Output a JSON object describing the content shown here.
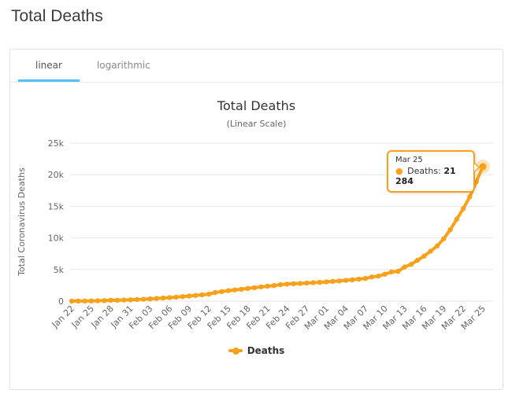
{
  "page": {
    "title": "Total Deaths"
  },
  "tabs": [
    {
      "label": "linear",
      "active": true
    },
    {
      "label": "logarithmic",
      "active": false
    }
  ],
  "chart": {
    "title": "Total Deaths",
    "subtitle": "(Linear Scale)",
    "legend_label": "Deaths",
    "tooltip": {
      "date": "Mar 25",
      "bullet": "●",
      "label": "Deaths:",
      "value": "21 284"
    },
    "colors": {
      "series": "#f9a11a",
      "halo": "rgba(249,161,26,0.3)",
      "grid": "#e6e6e6",
      "axis_text": "#666666",
      "tab_underline": "#4fc3f7"
    }
  },
  "chart_data": {
    "type": "line",
    "title": "Total Deaths",
    "subtitle": "(Linear Scale)",
    "series_name": "Deaths",
    "xlabel": "",
    "ylabel": "Total Coronavirus Deaths",
    "ylim": [
      0,
      25000
    ],
    "yticks": [
      0,
      5000,
      10000,
      15000,
      20000,
      25000
    ],
    "ytick_labels": [
      "0",
      "5k",
      "10k",
      "15k",
      "20k",
      "25k"
    ],
    "xtick_every": 3,
    "grid": "horizontal",
    "legend_position": "bottom",
    "color": "#f9a11a",
    "x": [
      "Jan 22",
      "Jan 23",
      "Jan 24",
      "Jan 25",
      "Jan 26",
      "Jan 27",
      "Jan 28",
      "Jan 29",
      "Jan 30",
      "Jan 31",
      "Feb 01",
      "Feb 02",
      "Feb 03",
      "Feb 04",
      "Feb 05",
      "Feb 06",
      "Feb 07",
      "Feb 08",
      "Feb 09",
      "Feb 10",
      "Feb 11",
      "Feb 12",
      "Feb 13",
      "Feb 14",
      "Feb 15",
      "Feb 16",
      "Feb 17",
      "Feb 18",
      "Feb 19",
      "Feb 20",
      "Feb 21",
      "Feb 22",
      "Feb 23",
      "Feb 24",
      "Feb 25",
      "Feb 26",
      "Feb 27",
      "Feb 28",
      "Feb 29",
      "Mar 01",
      "Mar 02",
      "Mar 03",
      "Mar 04",
      "Mar 05",
      "Mar 06",
      "Mar 07",
      "Mar 08",
      "Mar 09",
      "Mar 10",
      "Mar 11",
      "Mar 12",
      "Mar 13",
      "Mar 14",
      "Mar 15",
      "Mar 16",
      "Mar 17",
      "Mar 18",
      "Mar 19",
      "Mar 20",
      "Mar 21",
      "Mar 22",
      "Mar 23",
      "Mar 24",
      "Mar 25"
    ],
    "values": [
      17,
      18,
      26,
      42,
      56,
      82,
      131,
      133,
      171,
      213,
      259,
      304,
      362,
      426,
      492,
      564,
      634,
      719,
      806,
      906,
      1013,
      1113,
      1371,
      1523,
      1669,
      1775,
      1873,
      2009,
      2126,
      2247,
      2360,
      2460,
      2618,
      2699,
      2763,
      2800,
      2858,
      2923,
      2977,
      3050,
      3117,
      3202,
      3285,
      3387,
      3494,
      3599,
      3827,
      3970,
      4262,
      4615,
      4720,
      5404,
      5819,
      6470,
      7126,
      7905,
      8733,
      9867,
      11299,
      12973,
      14632,
      16513,
      18894,
      21284
    ],
    "highlight_last_point": true
  }
}
